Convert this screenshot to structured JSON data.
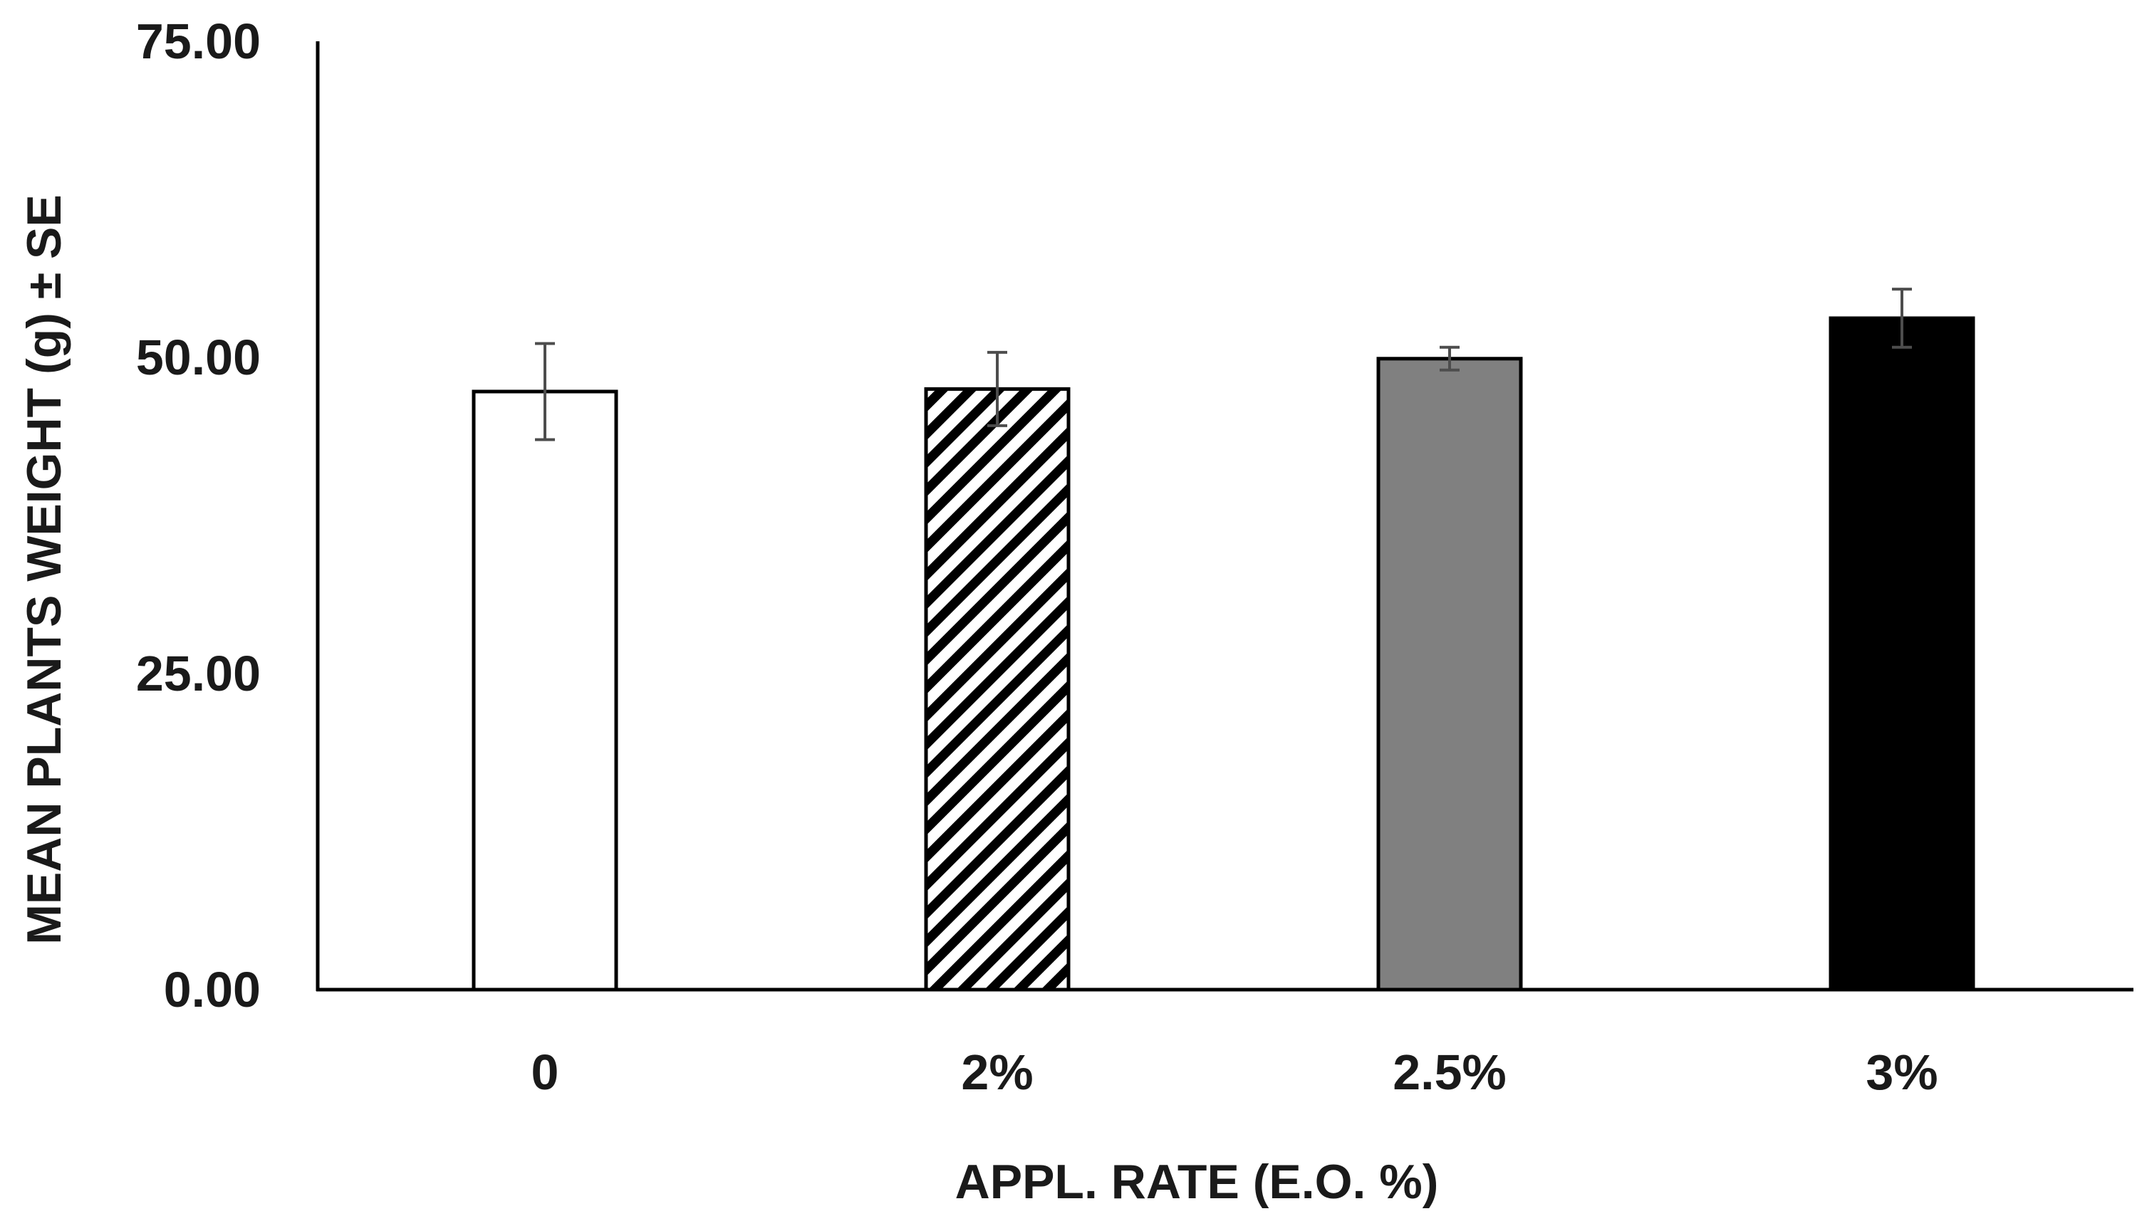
{
  "chart_data": {
    "type": "bar",
    "xlabel": "APPL. RATE (E.O. %)",
    "ylabel": "MEAN PLANTS WEIGHT (g) ± SE",
    "ylim": [
      0,
      75
    ],
    "y_ticks": [
      "0.00",
      "25.00",
      "50.00",
      "75.00"
    ],
    "y_tick_values": [
      0,
      25,
      50,
      75
    ],
    "categories": [
      "0",
      "2%",
      "2.5%",
      "3%"
    ],
    "values": [
      47.3,
      47.5,
      49.9,
      53.1
    ],
    "errors": [
      3.8,
      2.9,
      0.9,
      2.3
    ],
    "bar_styles": [
      "white",
      "hatched",
      "gray",
      "black"
    ],
    "colors": {
      "gray_fill": "#808080",
      "black_fill": "#000000",
      "white_fill": "#ffffff",
      "error_bar": "#4d4d4d",
      "axis": "#000000"
    },
    "grid": false,
    "legend": "none"
  }
}
